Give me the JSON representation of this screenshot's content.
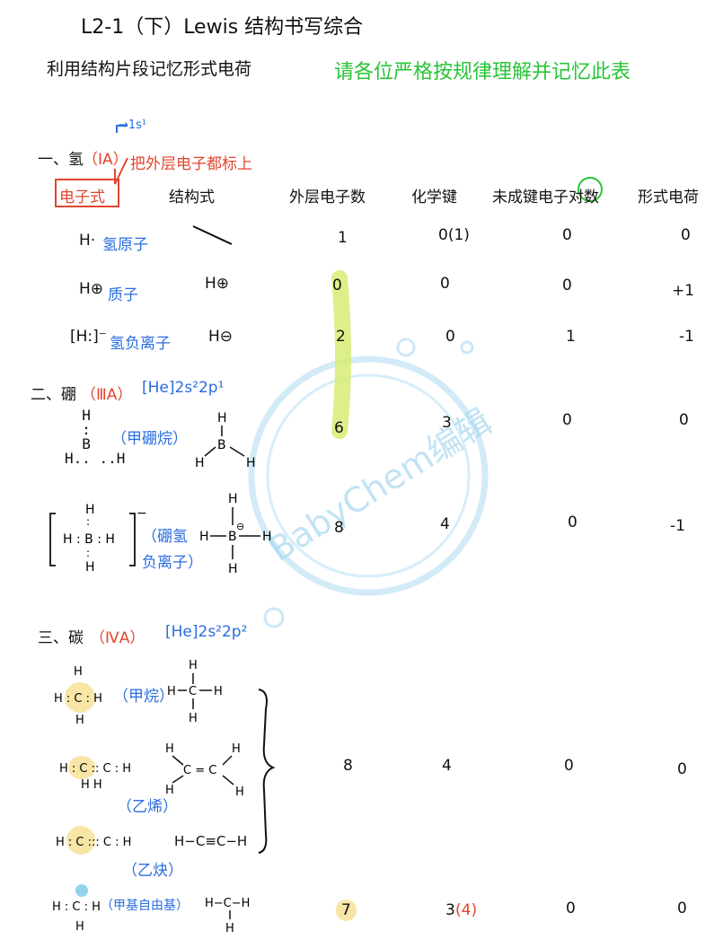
{
  "header": {
    "title": "L2-1（下）Lewis 结构书写综合",
    "subtitle": "利用结构片段记忆形式电荷",
    "note": "请各位严格按规律理解并记忆此表"
  },
  "columns": {
    "electron_formula": "电子式",
    "structural_formula": "结构式",
    "valence_electrons": "外层电子数",
    "bonds": "化学键",
    "lone_pairs": "未成键电子对数",
    "formal_charge": "形式电荷"
  },
  "section1": {
    "label": "一、氢",
    "group": "（IA）",
    "arrow_note": "→1s¹",
    "arrow_note2": "把外层电子都标上",
    "rows": [
      {
        "electron": "H·",
        "name": "氢原子",
        "structure": "",
        "valence": "1",
        "bonds": "0(1)",
        "lone": "0",
        "charge": "0"
      },
      {
        "electron": "H⊕",
        "name": "质子",
        "structure": "H⊕",
        "valence": "0",
        "bonds": "0",
        "lone": "0",
        "charge": "+1"
      },
      {
        "electron": "[H:]⁻",
        "name": "氢负离子",
        "structure": "H⊖",
        "valence": "2",
        "bonds": "0",
        "lone": "1",
        "charge": "-1"
      }
    ]
  },
  "section2": {
    "label": "二、硼",
    "group": "（ⅢA）",
    "config": "[He]2s²2p¹",
    "rows": [
      {
        "name": "（甲硼烷）",
        "valence": "6",
        "bonds": "3",
        "lone": "0",
        "charge": "0"
      },
      {
        "name1": "（硼氢",
        "name2": "负离子）",
        "valence": "8",
        "bonds": "4",
        "lone": "0",
        "charge": "-1"
      }
    ]
  },
  "section3": {
    "label": "三、碳",
    "group": "（ⅣA）",
    "config": "[He]2s²2p²",
    "methane": "（甲烷）",
    "ethene": "（乙烯）",
    "ethyne": "（乙炔）",
    "methyl": "（甲基自由基）",
    "ethyne_struct": "H−C≡C−H",
    "group_values": {
      "valence": "8",
      "bonds": "4",
      "lone": "0",
      "charge": "0"
    },
    "methyl_values": {
      "valence": "7",
      "bonds": "3",
      "bonds_alt": "(4)",
      "lone": "0",
      "charge": "0"
    }
  },
  "watermark": "BabyChem编辑"
}
